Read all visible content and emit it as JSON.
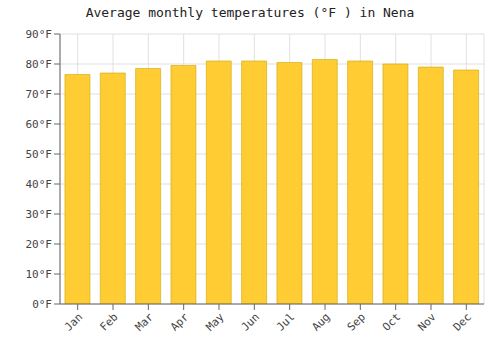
{
  "chart_data": {
    "type": "bar",
    "title": "Average monthly temperatures (°F ) in Nena",
    "categories": [
      "Jan",
      "Feb",
      "Mar",
      "Apr",
      "May",
      "Jun",
      "Jul",
      "Aug",
      "Sep",
      "Oct",
      "Nov",
      "Dec"
    ],
    "values": [
      76.5,
      77.0,
      78.5,
      79.5,
      81.0,
      81.0,
      80.5,
      81.5,
      81.0,
      80.0,
      79.0,
      78.0
    ],
    "color": "#FFCC33",
    "ylim": [
      0,
      90
    ],
    "yticks": [
      {
        "value": 0,
        "label": "0°F"
      },
      {
        "value": 10,
        "label": "10°F"
      },
      {
        "value": 20,
        "label": "20°F"
      },
      {
        "value": 30,
        "label": "30°F"
      },
      {
        "value": 40,
        "label": "40°F"
      },
      {
        "value": 50,
        "label": "50°F"
      },
      {
        "value": 60,
        "label": "60°F"
      },
      {
        "value": 70,
        "label": "70°F"
      },
      {
        "value": 80,
        "label": "80°F"
      },
      {
        "value": 90,
        "label": "90°F"
      }
    ],
    "grid": true
  }
}
